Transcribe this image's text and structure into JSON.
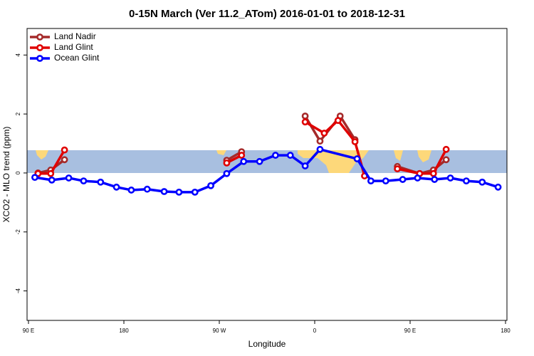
{
  "chart_data": {
    "type": "line",
    "title": "0-15N March (Ver 11.2_ATom)   2016-01-01 to 2018-12-31",
    "x_label": "Longitude",
    "y_label": "XCO2 - MLO trend (ppm)",
    "xlim": [
      90,
      540
    ],
    "ylim": [
      -5,
      4.9
    ],
    "xticks": [
      {
        "value": 90,
        "label": "90 E"
      },
      180,
      {
        "value": 270,
        "label": "90 W"
      },
      {
        "value": 360,
        "label": "0"
      },
      {
        "value": 450,
        "label": "90 E"
      },
      {
        "value": 540,
        "label": "180"
      }
    ],
    "yticks": [
      -4,
      -2,
      0,
      2,
      4
    ],
    "legend": "top-left",
    "series": [
      {
        "name": "Land Nadir",
        "color": "#a52a2a",
        "x": [
          99,
          111,
          124,
          null,
          277,
          291,
          null,
          351,
          365,
          384,
          398,
          null,
          438,
          459,
          472,
          484
        ],
        "values": [
          0,
          0.1,
          0.45,
          null,
          0.43,
          0.72,
          null,
          1.93,
          1.08,
          1.93,
          1.13,
          null,
          0.22,
          -0.02,
          0.1,
          0.45
        ]
      },
      {
        "name": "Land Glint",
        "color": "#e00000",
        "x": [
          99,
          111,
          124,
          null,
          277,
          291,
          null,
          351,
          369,
          382,
          398,
          407,
          null,
          438,
          459,
          472,
          484
        ],
        "values": [
          -0.02,
          -0.02,
          0.78,
          null,
          0.34,
          0.6,
          null,
          1.73,
          1.35,
          1.78,
          1.06,
          -0.1,
          null,
          0.14,
          -0.02,
          -0.02,
          0.8
        ]
      },
      {
        "name": "Ocean Glint",
        "color": "#0000ff",
        "x": [
          96,
          112,
          128,
          142,
          158,
          173,
          187,
          202,
          218,
          232,
          247,
          262,
          277,
          293,
          308,
          323,
          337,
          351,
          365,
          400,
          413,
          427,
          443,
          457,
          473,
          488,
          503,
          518,
          533
        ],
        "values": [
          -0.15,
          -0.24,
          -0.17,
          -0.27,
          -0.31,
          -0.48,
          -0.58,
          -0.55,
          -0.63,
          -0.65,
          -0.65,
          -0.43,
          -0.02,
          0.39,
          0.39,
          0.6,
          0.6,
          0.24,
          0.8,
          0.48,
          -0.27,
          -0.27,
          -0.22,
          -0.17,
          -0.22,
          -0.17,
          -0.27,
          -0.31,
          -0.48
        ]
      }
    ]
  }
}
